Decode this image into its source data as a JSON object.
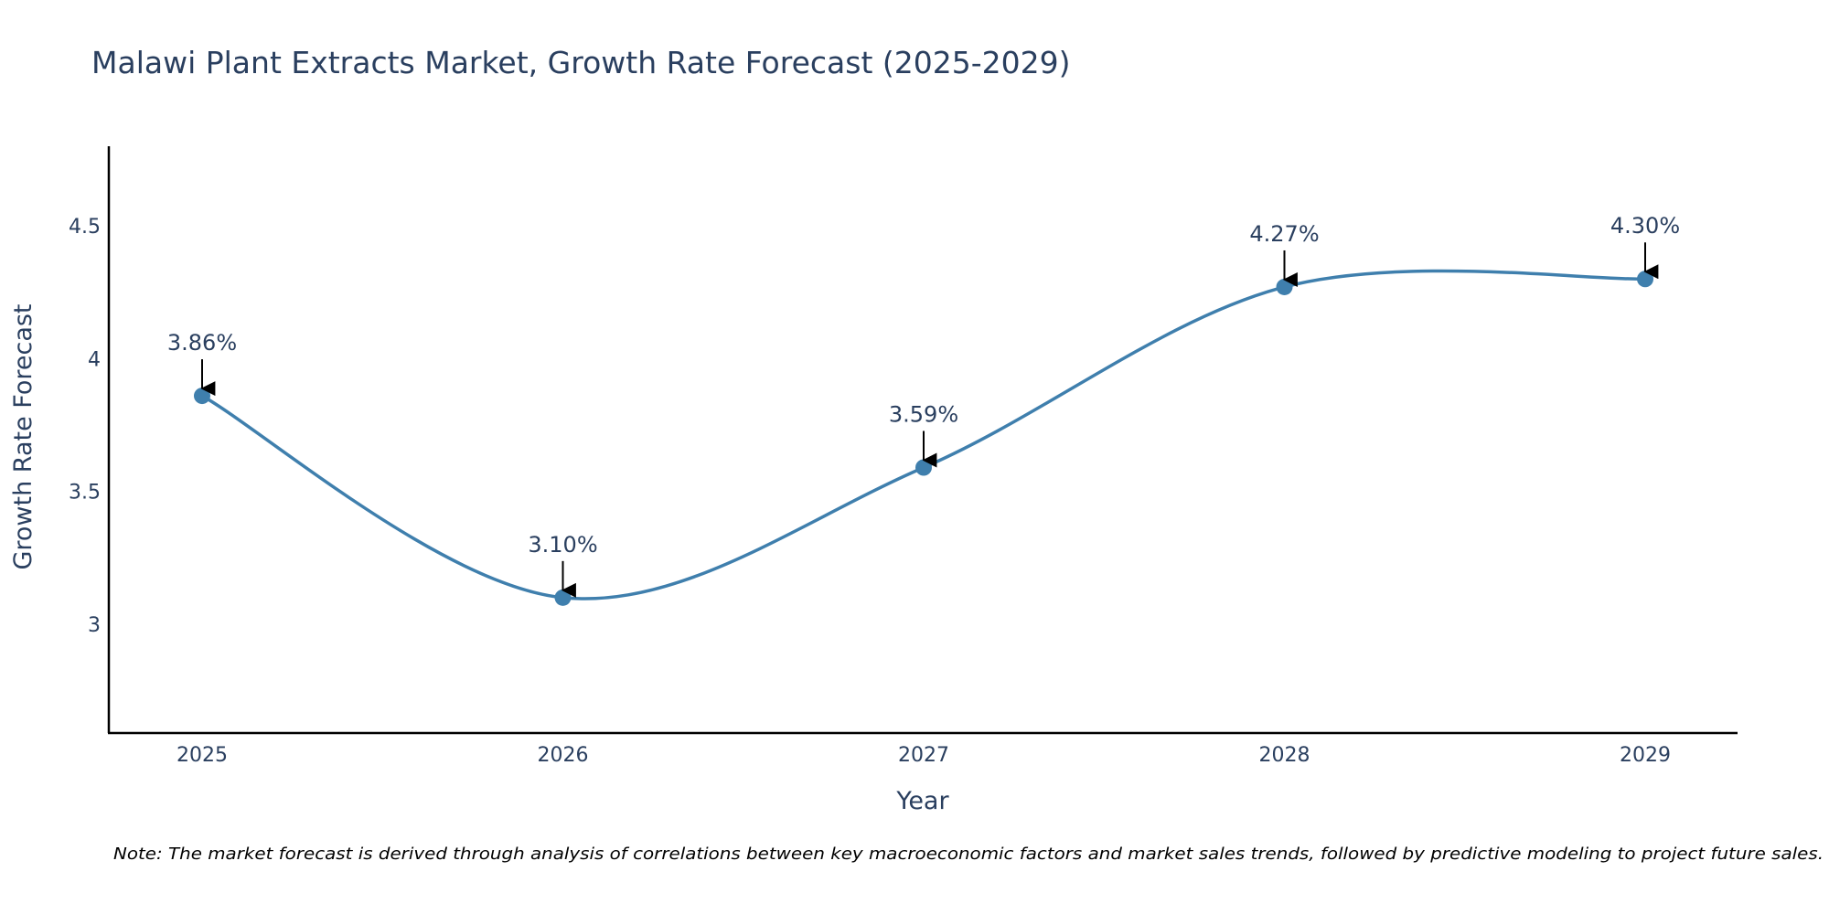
{
  "colors": {
    "line": "#3f7fad",
    "marker": "#3f7fad",
    "text": "#2a3f5f",
    "axis": "#000000",
    "arrow": "#000000"
  },
  "chart_data": {
    "type": "line",
    "title": "Malawi Plant Extracts Market, Growth Rate Forecast (2025-2029)",
    "xlabel": "Year",
    "ylabel": "Growth Rate Forecast",
    "categories": [
      "2025",
      "2026",
      "2027",
      "2028",
      "2029"
    ],
    "values": [
      3.86,
      3.1,
      3.59,
      4.27,
      4.3
    ],
    "data_labels": [
      "3.86%",
      "3.10%",
      "3.59%",
      "4.27%",
      "4.30%"
    ],
    "yticks": [
      3,
      3.5,
      4,
      4.5
    ],
    "ytick_labels": [
      "3",
      "3.5",
      "4",
      "4.5"
    ],
    "ylim": [
      2.59,
      4.8
    ],
    "grid": false,
    "line_shape": "spline"
  },
  "note": "Note: The market forecast is derived through analysis of correlations between key macroeconomic factors and market sales trends, followed by predictive modeling to project future sales."
}
